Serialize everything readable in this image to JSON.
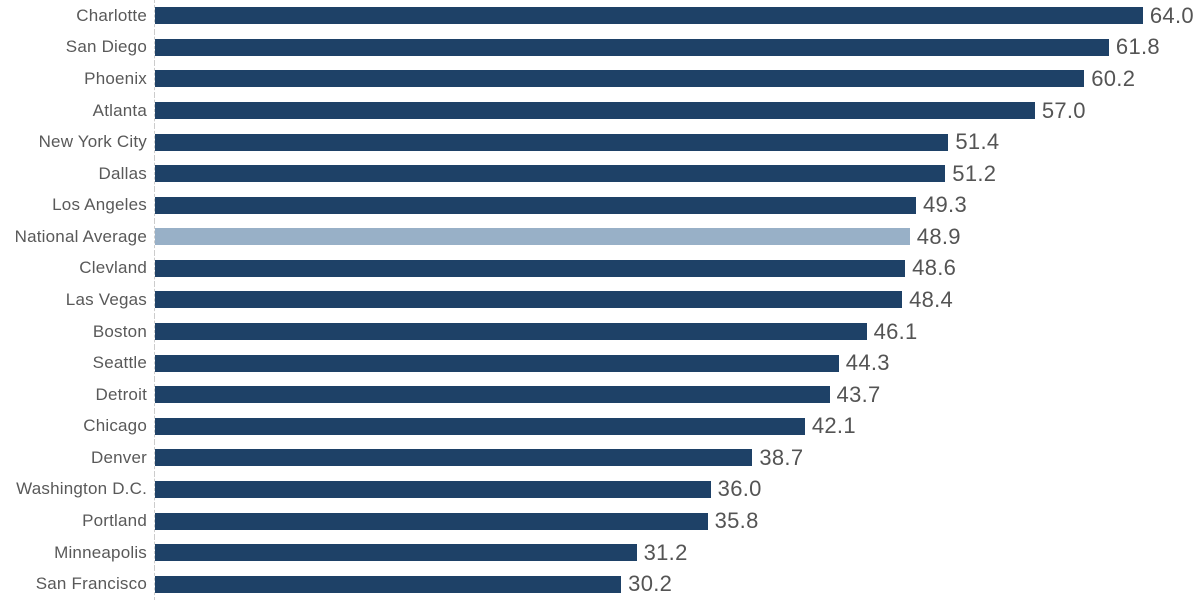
{
  "chart_data": {
    "type": "bar",
    "orientation": "horizontal",
    "title": "",
    "xlabel": "",
    "ylabel": "",
    "categories": [
      "Charlotte",
      "San Diego",
      "Phoenix",
      "Atlanta",
      "New York City",
      "Dallas",
      "Los Angeles",
      "National Average",
      "Clevland",
      "Las Vegas",
      "Boston",
      "Seattle",
      "Detroit",
      "Chicago",
      "Denver",
      "Washington D.C.",
      "Portland",
      "Minneapolis",
      "San Francisco"
    ],
    "values": [
      64.0,
      61.8,
      60.2,
      57.0,
      51.4,
      51.2,
      49.3,
      48.9,
      48.6,
      48.4,
      46.1,
      44.3,
      43.7,
      42.1,
      38.7,
      36.0,
      35.8,
      31.2,
      30.2
    ],
    "highlight_category": "National Average",
    "highlight_index": 7,
    "xlim": [
      0,
      67.7
    ],
    "grid": false,
    "legend": false,
    "value_labels_shown": true,
    "value_decimals": 1,
    "colors": {
      "bar": "#1E4167",
      "highlight_bar": "#98B0C7",
      "category_label": "#595959",
      "value_label": "#545454",
      "axis_line": "#cccccc",
      "background": "#ffffff"
    }
  }
}
